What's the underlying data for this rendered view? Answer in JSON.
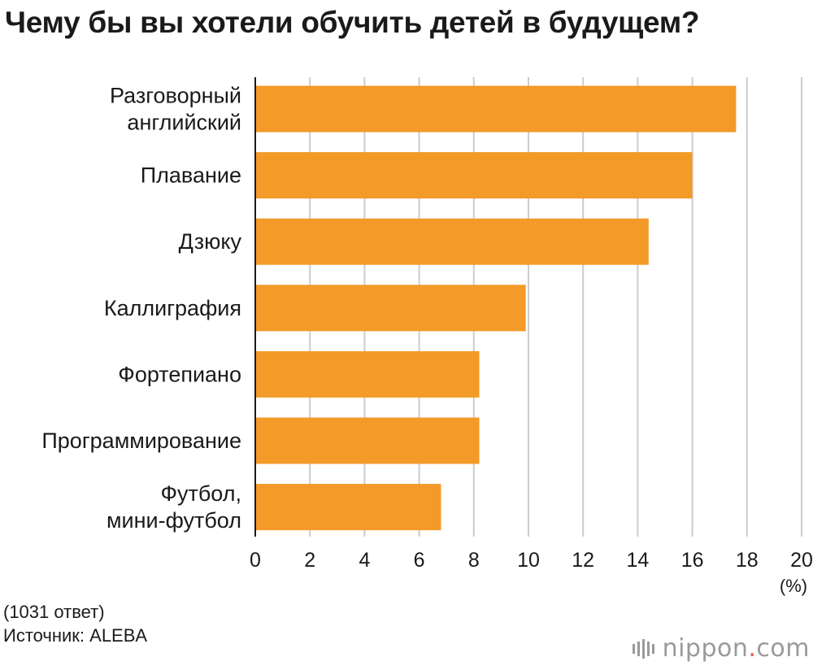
{
  "title": "Чему бы вы хотели обучить детей в будущем?",
  "notes": {
    "sample": "(1031 ответ)",
    "source": "Источник: ALEBA"
  },
  "brand": {
    "name": "nippon",
    "dot": ".",
    "tld": "com"
  },
  "colors": {
    "bar": "#F39A28",
    "grid": "#CCCCCC",
    "axis": "#1A1A1A"
  },
  "chart_data": {
    "type": "bar",
    "orientation": "horizontal",
    "title": "Чему бы вы хотели обучить детей в будущем?",
    "unit_label": "(%)",
    "categories": [
      [
        "Разговорный",
        "английский"
      ],
      [
        "Плавание"
      ],
      [
        "Дзюку"
      ],
      [
        "Каллиграфия"
      ],
      [
        "Фортепиано"
      ],
      [
        "Программирование"
      ],
      [
        "Футбол,",
        "мини-футбол"
      ]
    ],
    "values": [
      17.6,
      16.0,
      14.4,
      9.9,
      8.2,
      8.2,
      6.8
    ],
    "xlim": [
      0,
      20
    ],
    "ticks": [
      "0",
      "2",
      "4",
      "6",
      "8",
      "10",
      "12",
      "14",
      "16",
      "18",
      "20"
    ],
    "grid": true,
    "legend": "none"
  }
}
